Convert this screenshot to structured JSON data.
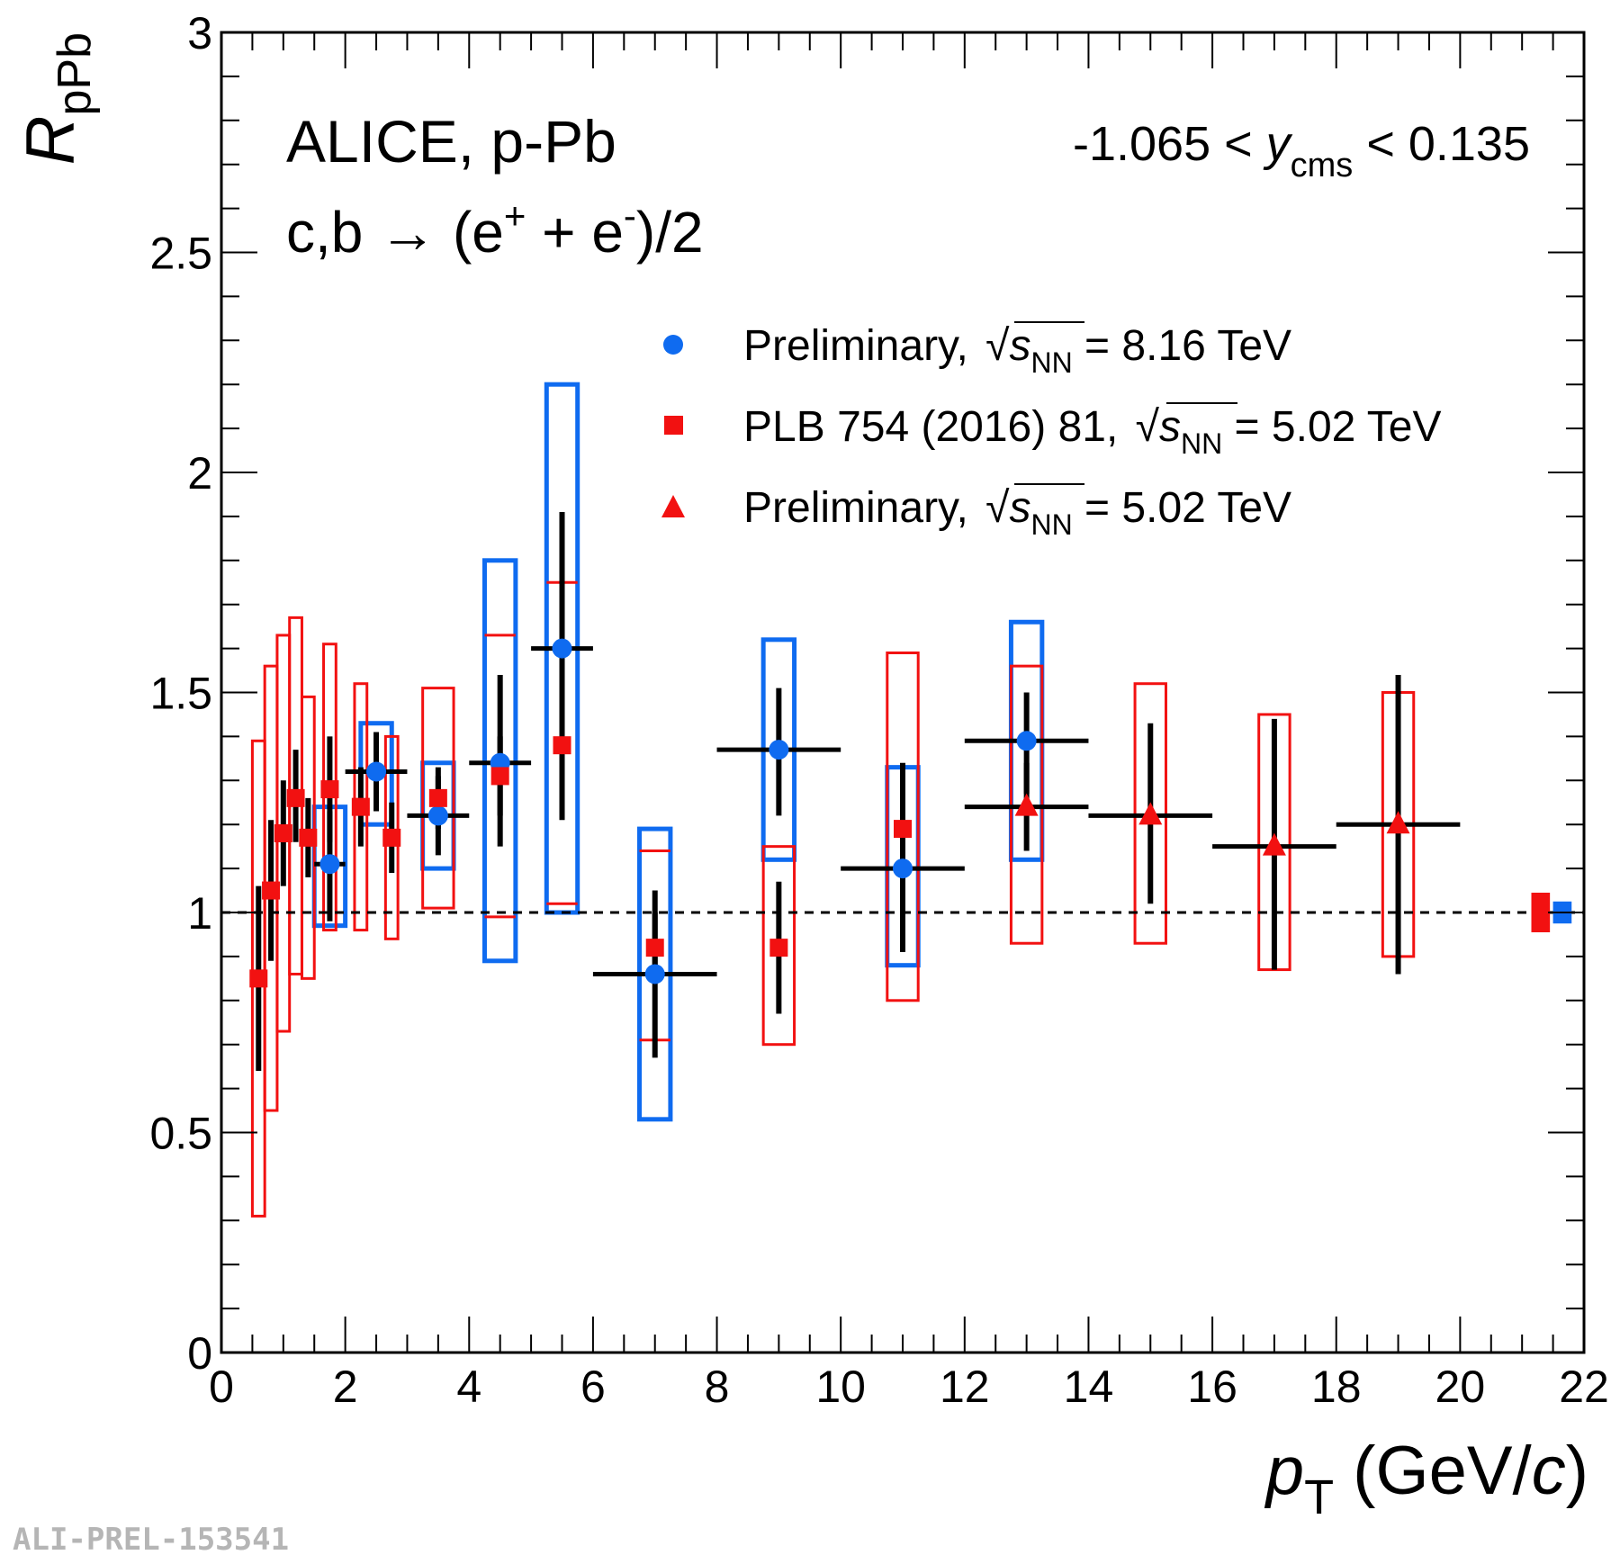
{
  "chart_data": {
    "type": "scatter",
    "title_lines": [
      "ALICE, p-Pb"
    ],
    "process": {
      "lhs": "c,b",
      "arrow": "→",
      "open": "(e",
      "plus_sup": "+",
      "mid": " + e",
      "minus_sup": "-",
      "close": ")/2"
    },
    "rapidity": {
      "left": "-1.065 < ",
      "var": "y",
      "sub": "cms",
      "right": " < 0.135"
    },
    "xlabel": {
      "var": "p",
      "sub": "T",
      "unit_open": " (GeV/",
      "unit_var": "c",
      "unit_close": ")"
    },
    "ylabel": {
      "var": "R",
      "sub": "pPb"
    },
    "xlim": [
      0,
      22
    ],
    "ylim": [
      0,
      3
    ],
    "x_ticks": [
      {
        "v": 0,
        "label": "0"
      },
      {
        "v": 2,
        "label": "2"
      },
      {
        "v": 4,
        "label": "4"
      },
      {
        "v": 6,
        "label": "6"
      },
      {
        "v": 8,
        "label": "8"
      },
      {
        "v": 10,
        "label": "10"
      },
      {
        "v": 12,
        "label": "12"
      },
      {
        "v": 14,
        "label": "14"
      },
      {
        "v": 16,
        "label": "16"
      },
      {
        "v": 18,
        "label": "18"
      },
      {
        "v": 20,
        "label": "20"
      },
      {
        "v": 22,
        "label": "22"
      }
    ],
    "y_ticks": [
      {
        "v": 0,
        "label": "0"
      },
      {
        "v": 0.5,
        "label": "0.5"
      },
      {
        "v": 1,
        "label": "1"
      },
      {
        "v": 1.5,
        "label": "1.5"
      },
      {
        "v": 2,
        "label": "2"
      },
      {
        "v": 2.5,
        "label": "2.5"
      },
      {
        "v": 3,
        "label": "3"
      }
    ],
    "reference_line": 1,
    "legend": [
      {
        "marker": "circle",
        "color": "#0f6bf0",
        "prefix": "Preliminary, ",
        "var": "s",
        "sub": "NN",
        "suffix": " = 8.16 TeV"
      },
      {
        "marker": "square",
        "color": "#f21111",
        "prefix": "PLB 754 (2016) 81, ",
        "var": "s",
        "sub": "NN",
        "suffix": " = 5.02 TeV"
      },
      {
        "marker": "triangle",
        "color": "#f21111",
        "prefix": "Preliminary, ",
        "var": "s",
        "sub": "NN",
        "suffix": " = 5.02 TeV"
      }
    ],
    "series": [
      {
        "name": "Preliminary, 8.16 TeV",
        "marker": "circle",
        "color": "#0f6bf0",
        "points": [
          {
            "x": 1.75,
            "y": 1.11,
            "xlo": 1.5,
            "xhi": 2.0,
            "stat": [
              0.98,
              1.23
            ],
            "sys": [
              0.97,
              1.24
            ],
            "box_w": 0.5
          },
          {
            "x": 2.5,
            "y": 1.32,
            "xlo": 2.0,
            "xhi": 3.0,
            "stat": [
              1.23,
              1.41
            ],
            "sys": [
              1.2,
              1.43
            ],
            "box_w": 0.5
          },
          {
            "x": 3.5,
            "y": 1.22,
            "xlo": 3.0,
            "xhi": 4.0,
            "stat": [
              1.13,
              1.31
            ],
            "sys": [
              1.1,
              1.34
            ],
            "box_w": 0.5
          },
          {
            "x": 4.5,
            "y": 1.34,
            "xlo": 4.0,
            "xhi": 5.0,
            "stat": [
              1.15,
              1.54
            ],
            "sys": [
              0.89,
              1.8
            ],
            "box_w": 0.5
          },
          {
            "x": 5.5,
            "y": 1.6,
            "xlo": 5.0,
            "xhi": 6.0,
            "stat": [
              1.21,
              1.91
            ],
            "sys": [
              1.0,
              2.2
            ],
            "box_w": 0.5
          },
          {
            "x": 7.0,
            "y": 0.86,
            "xlo": 6.0,
            "xhi": 8.0,
            "stat": [
              0.67,
              1.05
            ],
            "sys": [
              0.53,
              1.19
            ],
            "box_w": 0.5
          },
          {
            "x": 9.0,
            "y": 1.37,
            "xlo": 8.0,
            "xhi": 10.0,
            "stat": [
              1.22,
              1.51
            ],
            "sys": [
              1.12,
              1.62
            ],
            "box_w": 0.5
          },
          {
            "x": 11.0,
            "y": 1.1,
            "xlo": 10.0,
            "xhi": 12.0,
            "stat": [
              0.91,
              1.28
            ],
            "sys": [
              0.88,
              1.33
            ],
            "box_w": 0.5
          },
          {
            "x": 13.0,
            "y": 1.39,
            "xlo": 12.0,
            "xhi": 14.0,
            "stat": [
              1.27,
              1.5
            ],
            "sys": [
              1.12,
              1.66
            ],
            "box_w": 0.5
          }
        ]
      },
      {
        "name": "PLB 754 (2016) 81, 5.02 TeV",
        "marker": "square",
        "color": "#f21111",
        "points": [
          {
            "x": 0.6,
            "y": 0.85,
            "stat": [
              0.64,
              1.06
            ],
            "sys": [
              0.31,
              1.39
            ],
            "box_w": 0.2
          },
          {
            "x": 0.8,
            "y": 1.05,
            "stat": [
              0.89,
              1.21
            ],
            "sys": [
              0.55,
              1.56
            ],
            "box_w": 0.2
          },
          {
            "x": 1.0,
            "y": 1.18,
            "stat": [
              1.06,
              1.3
            ],
            "sys": [
              0.73,
              1.63
            ],
            "box_w": 0.2
          },
          {
            "x": 1.2,
            "y": 1.26,
            "stat": [
              1.16,
              1.37
            ],
            "sys": [
              0.86,
              1.67
            ],
            "box_w": 0.2
          },
          {
            "x": 1.4,
            "y": 1.17,
            "stat": [
              1.08,
              1.26
            ],
            "sys": [
              0.85,
              1.49
            ],
            "box_w": 0.2
          },
          {
            "x": 1.75,
            "y": 1.28,
            "stat": [
              1.16,
              1.4
            ],
            "sys": [
              0.96,
              1.61
            ],
            "box_w": 0.2
          },
          {
            "x": 2.25,
            "y": 1.24,
            "stat": [
              1.15,
              1.33
            ],
            "sys": [
              0.96,
              1.52
            ],
            "box_w": 0.2
          },
          {
            "x": 2.75,
            "y": 1.17,
            "stat": [
              1.09,
              1.25
            ],
            "sys": [
              0.94,
              1.4
            ],
            "box_w": 0.2
          },
          {
            "x": 3.5,
            "y": 1.26,
            "stat": [
              1.19,
              1.33
            ],
            "sys": [
              1.01,
              1.51
            ],
            "box_w": 0.5
          },
          {
            "x": 4.5,
            "y": 1.31,
            "stat": [
              1.22,
              1.4
            ],
            "sys": [
              0.99,
              1.63
            ],
            "box_w": 0.5,
            "box_open": true
          },
          {
            "x": 5.5,
            "y": 1.38,
            "stat": [
              1.3,
              1.46
            ],
            "sys": [
              1.02,
              1.75
            ],
            "box_w": 0.5,
            "box_open": true
          },
          {
            "x": 7.0,
            "y": 0.92,
            "stat": [
              0.84,
              1.0
            ],
            "sys": [
              0.71,
              1.14
            ],
            "box_w": 0.5,
            "box_open": true
          },
          {
            "x": 9.0,
            "y": 0.92,
            "stat": [
              0.77,
              1.07
            ],
            "sys": [
              0.7,
              1.15
            ],
            "box_w": 0.5
          },
          {
            "x": 11.0,
            "y": 1.19,
            "stat": [
              1.04,
              1.34
            ],
            "sys": [
              0.8,
              1.59
            ],
            "box_w": 0.5
          }
        ]
      },
      {
        "name": "Preliminary, 5.02 TeV",
        "marker": "triangle",
        "color": "#f21111",
        "points": [
          {
            "x": 13.0,
            "y": 1.24,
            "xlo": 12.0,
            "xhi": 14.0,
            "stat": [
              1.14,
              1.34
            ],
            "sys": [
              0.93,
              1.56
            ],
            "box_w": 0.5
          },
          {
            "x": 15.0,
            "y": 1.22,
            "xlo": 14.0,
            "xhi": 16.0,
            "stat": [
              1.02,
              1.43
            ],
            "sys": [
              0.93,
              1.52
            ],
            "box_w": 0.5
          },
          {
            "x": 17.0,
            "y": 1.15,
            "xlo": 16.0,
            "xhi": 18.0,
            "stat": [
              0.87,
              1.44
            ],
            "sys": [
              0.87,
              1.45
            ],
            "box_w": 0.5
          },
          {
            "x": 19.0,
            "y": 1.2,
            "xlo": 18.0,
            "xhi": 20.0,
            "stat": [
              0.86,
              1.54
            ],
            "sys": [
              0.9,
              1.5
            ],
            "box_w": 0.5
          }
        ]
      }
    ],
    "normalization_boxes": [
      {
        "x": 21.3,
        "w": 0.3,
        "lo": 0.955,
        "hi": 1.045,
        "color": "#f21111"
      },
      {
        "x": 21.65,
        "w": 0.3,
        "lo": 0.975,
        "hi": 1.025,
        "color": "#0f6bf0"
      }
    ]
  },
  "watermark": "ALI-PREL-153541"
}
